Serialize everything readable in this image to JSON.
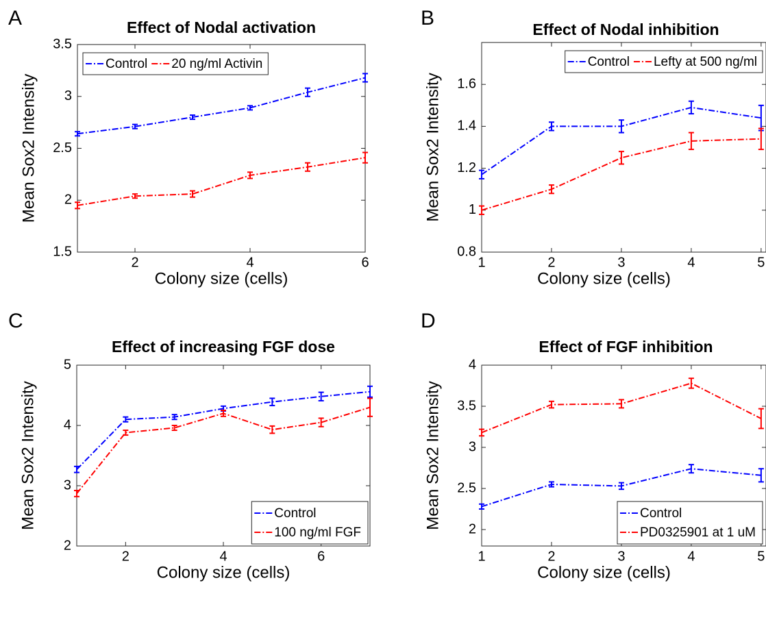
{
  "chart_data": [
    {
      "type": "line",
      "panel": "A",
      "title": "Effect of Nodal activation",
      "xlabel": "Colony size (cells)",
      "ylabel": "Mean Sox2 Intensity",
      "x": [
        1,
        2,
        3,
        4,
        5,
        6
      ],
      "xlim": [
        1,
        6
      ],
      "xticks": [
        2,
        4,
        6
      ],
      "ylim": [
        1.5,
        3.5
      ],
      "yticks": [
        1.5,
        2,
        2.5,
        3,
        3.5
      ],
      "legend": "upper left",
      "legend_orientation": "horizontal",
      "series": [
        {
          "name": "Control",
          "color": "#0000ff",
          "values": [
            2.64,
            2.71,
            2.8,
            2.89,
            3.04,
            3.18
          ],
          "errors": [
            0.02,
            0.02,
            0.02,
            0.02,
            0.04,
            0.04
          ]
        },
        {
          "name": "20 ng/ml Activin",
          "color": "#ff0000",
          "values": [
            1.95,
            2.04,
            2.06,
            2.24,
            2.32,
            2.41
          ],
          "errors": [
            0.03,
            0.02,
            0.03,
            0.03,
            0.04,
            0.05
          ]
        }
      ]
    },
    {
      "type": "line",
      "panel": "B",
      "title": "Effect of Nodal inhibition",
      "xlabel": "Colony size (cells)",
      "ylabel": "Mean Sox2 Intensity",
      "x": [
        1,
        2,
        3,
        4,
        5
      ],
      "xlim": [
        1,
        5.07
      ],
      "xticks": [
        1,
        2,
        3,
        4,
        5
      ],
      "ylim": [
        0.8,
        1.8
      ],
      "yticks": [
        0.8,
        1,
        1.2,
        1.4,
        1.6
      ],
      "legend": "upper right",
      "legend_orientation": "horizontal",
      "series": [
        {
          "name": "Control",
          "color": "#0000ff",
          "values": [
            1.17,
            1.4,
            1.4,
            1.49,
            1.44
          ],
          "errors": [
            0.02,
            0.02,
            0.03,
            0.03,
            0.06
          ]
        },
        {
          "name": "Lefty at 500 ng/ml",
          "color": "#ff0000",
          "values": [
            1.0,
            1.1,
            1.25,
            1.33,
            1.34
          ],
          "errors": [
            0.02,
            0.02,
            0.03,
            0.04,
            0.05
          ]
        }
      ]
    },
    {
      "type": "line",
      "panel": "C",
      "title": "Effect of increasing FGF dose",
      "xlabel": "Colony size (cells)",
      "ylabel": "Mean Sox2 Intensity",
      "x": [
        1,
        2,
        3,
        4,
        5,
        6,
        7
      ],
      "xlim": [
        1,
        7
      ],
      "xticks": [
        2,
        4,
        6
      ],
      "ylim": [
        2,
        5
      ],
      "yticks": [
        2,
        3,
        4,
        5
      ],
      "legend": "lower right",
      "legend_orientation": "vertical",
      "series": [
        {
          "name": "Control",
          "color": "#0000ff",
          "values": [
            3.27,
            4.1,
            4.14,
            4.28,
            4.39,
            4.48,
            4.56
          ],
          "errors": [
            0.05,
            0.04,
            0.04,
            0.04,
            0.06,
            0.07,
            0.09
          ]
        },
        {
          "name": "100 ng/ml FGF",
          "color": "#ff0000",
          "values": [
            2.87,
            3.88,
            3.96,
            4.2,
            3.93,
            4.05,
            4.3
          ],
          "errors": [
            0.05,
            0.04,
            0.04,
            0.05,
            0.06,
            0.07,
            0.15
          ]
        }
      ]
    },
    {
      "type": "line",
      "panel": "D",
      "title": "Effect of FGF inhibition",
      "xlabel": "Colony size (cells)",
      "ylabel": "Mean Sox2 Intensity",
      "x": [
        1,
        2,
        3,
        4,
        5
      ],
      "xlim": [
        1,
        5.07
      ],
      "xticks": [
        1,
        2,
        3,
        4,
        5
      ],
      "ylim": [
        1.8,
        4
      ],
      "yticks": [
        2,
        2.5,
        3,
        3.5,
        4
      ],
      "legend": "lower right",
      "legend_orientation": "vertical",
      "series": [
        {
          "name": "Control",
          "color": "#0000ff",
          "values": [
            2.28,
            2.55,
            2.53,
            2.74,
            2.66
          ],
          "errors": [
            0.03,
            0.03,
            0.04,
            0.05,
            0.08
          ]
        },
        {
          "name": "PD0325901 at 1 uM",
          "color": "#ff0000",
          "values": [
            3.18,
            3.52,
            3.53,
            3.78,
            3.35
          ],
          "errors": [
            0.04,
            0.04,
            0.05,
            0.06,
            0.12
          ]
        }
      ]
    }
  ]
}
